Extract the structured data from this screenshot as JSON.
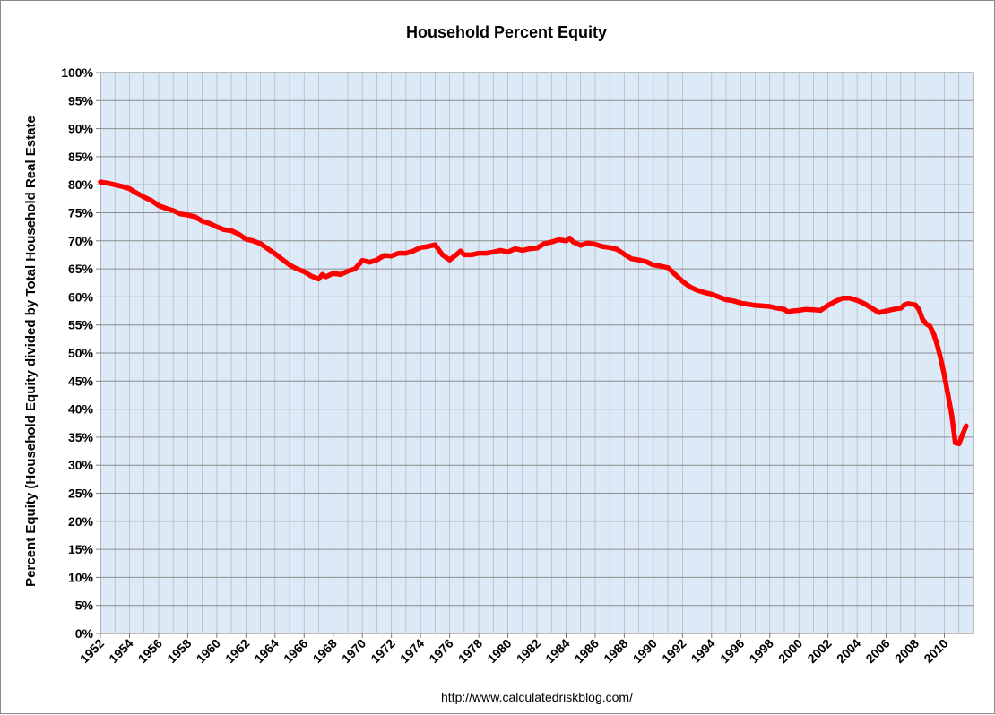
{
  "chart_data": {
    "type": "line",
    "title": "Household Percent Equity",
    "xlabel": "",
    "ylabel": "Percent Equity (Household Equity divided by Total Household Real Estate",
    "source": "http://www.calculatedriskblog.com/",
    "xlim": [
      1952,
      2010
    ],
    "ylim": [
      0,
      100
    ],
    "x_ticks": [
      "1952",
      "1954",
      "1956",
      "1958",
      "1960",
      "1962",
      "1964",
      "1966",
      "1968",
      "1970",
      "1972",
      "1974",
      "1976",
      "1978",
      "1980",
      "1982",
      "1984",
      "1986",
      "1988",
      "1990",
      "1992",
      "1994",
      "1996",
      "1998",
      "2000",
      "2002",
      "2004",
      "2006",
      "2008",
      "2010"
    ],
    "y_ticks": [
      "0%",
      "5%",
      "10%",
      "15%",
      "20%",
      "25%",
      "30%",
      "35%",
      "40%",
      "45%",
      "50%",
      "55%",
      "60%",
      "65%",
      "70%",
      "75%",
      "80%",
      "85%",
      "90%",
      "95%",
      "100%"
    ],
    "grid": true,
    "legend": "none",
    "line_color": "#ff0000",
    "plot_background": "#dce9f7",
    "series": [
      {
        "values": [
          [
            1952.0,
            80.5
          ],
          [
            1952.5,
            80.3
          ],
          [
            1953.0,
            80.0
          ],
          [
            1953.5,
            79.7
          ],
          [
            1954.0,
            79.3
          ],
          [
            1954.5,
            78.5
          ],
          [
            1955.0,
            77.8
          ],
          [
            1955.5,
            77.2
          ],
          [
            1956.0,
            76.3
          ],
          [
            1956.5,
            75.8
          ],
          [
            1957.0,
            75.4
          ],
          [
            1957.5,
            74.8
          ],
          [
            1958.0,
            74.6
          ],
          [
            1958.5,
            74.3
          ],
          [
            1959.0,
            73.5
          ],
          [
            1959.5,
            73.1
          ],
          [
            1960.0,
            72.5
          ],
          [
            1960.5,
            72.0
          ],
          [
            1961.0,
            71.8
          ],
          [
            1961.5,
            71.2
          ],
          [
            1962.0,
            70.3
          ],
          [
            1962.5,
            70.0
          ],
          [
            1963.0,
            69.5
          ],
          [
            1963.5,
            68.6
          ],
          [
            1964.0,
            67.7
          ],
          [
            1964.5,
            66.7
          ],
          [
            1965.0,
            65.7
          ],
          [
            1965.5,
            65.0
          ],
          [
            1966.0,
            64.5
          ],
          [
            1966.5,
            63.7
          ],
          [
            1967.0,
            63.2
          ],
          [
            1967.25,
            64.0
          ],
          [
            1967.5,
            63.6
          ],
          [
            1968.0,
            64.2
          ],
          [
            1968.5,
            64.0
          ],
          [
            1969.0,
            64.6
          ],
          [
            1969.5,
            65.0
          ],
          [
            1970.0,
            66.5
          ],
          [
            1970.5,
            66.2
          ],
          [
            1971.0,
            66.6
          ],
          [
            1971.5,
            67.4
          ],
          [
            1972.0,
            67.3
          ],
          [
            1972.5,
            67.8
          ],
          [
            1973.0,
            67.8
          ],
          [
            1973.5,
            68.2
          ],
          [
            1974.0,
            68.8
          ],
          [
            1974.5,
            69.0
          ],
          [
            1975.0,
            69.3
          ],
          [
            1975.5,
            67.5
          ],
          [
            1976.0,
            66.6
          ],
          [
            1976.5,
            67.6
          ],
          [
            1976.75,
            68.2
          ],
          [
            1977.0,
            67.5
          ],
          [
            1977.5,
            67.5
          ],
          [
            1978.0,
            67.8
          ],
          [
            1978.5,
            67.8
          ],
          [
            1979.0,
            68.0
          ],
          [
            1979.5,
            68.3
          ],
          [
            1980.0,
            68.0
          ],
          [
            1980.5,
            68.6
          ],
          [
            1981.0,
            68.3
          ],
          [
            1981.5,
            68.6
          ],
          [
            1982.0,
            68.7
          ],
          [
            1982.5,
            69.5
          ],
          [
            1983.0,
            69.8
          ],
          [
            1983.5,
            70.2
          ],
          [
            1984.0,
            70.0
          ],
          [
            1984.25,
            70.5
          ],
          [
            1984.5,
            69.8
          ],
          [
            1985.0,
            69.2
          ],
          [
            1985.5,
            69.6
          ],
          [
            1986.0,
            69.4
          ],
          [
            1986.5,
            69.0
          ],
          [
            1987.0,
            68.8
          ],
          [
            1987.5,
            68.5
          ],
          [
            1988.0,
            67.6
          ],
          [
            1988.5,
            66.8
          ],
          [
            1989.0,
            66.6
          ],
          [
            1989.5,
            66.3
          ],
          [
            1990.0,
            65.7
          ],
          [
            1990.5,
            65.5
          ],
          [
            1991.0,
            65.2
          ],
          [
            1991.5,
            64.0
          ],
          [
            1992.0,
            62.8
          ],
          [
            1992.5,
            61.8
          ],
          [
            1993.0,
            61.2
          ],
          [
            1993.5,
            60.8
          ],
          [
            1994.0,
            60.5
          ],
          [
            1994.5,
            60.0
          ],
          [
            1995.0,
            59.5
          ],
          [
            1995.5,
            59.3
          ],
          [
            1996.0,
            58.9
          ],
          [
            1996.5,
            58.7
          ],
          [
            1997.0,
            58.5
          ],
          [
            1997.5,
            58.4
          ],
          [
            1998.0,
            58.3
          ],
          [
            1998.5,
            58.0
          ],
          [
            1999.0,
            57.8
          ],
          [
            1999.25,
            57.3
          ],
          [
            1999.5,
            57.5
          ],
          [
            2000.0,
            57.6
          ],
          [
            2000.5,
            57.8
          ],
          [
            2001.0,
            57.7
          ],
          [
            2001.5,
            57.6
          ],
          [
            2002.0,
            58.5
          ],
          [
            2002.5,
            59.2
          ],
          [
            2003.0,
            59.8
          ],
          [
            2003.5,
            59.8
          ],
          [
            2004.0,
            59.4
          ],
          [
            2004.5,
            58.8
          ],
          [
            2005.0,
            58.0
          ],
          [
            2005.5,
            57.2
          ],
          [
            2006.0,
            57.5
          ],
          [
            2006.5,
            57.8
          ],
          [
            2007.0,
            58.0
          ],
          [
            2007.25,
            58.6
          ],
          [
            2007.5,
            58.8
          ],
          [
            2008.0,
            58.6
          ],
          [
            2008.25,
            57.8
          ],
          [
            2008.5,
            56.0
          ],
          [
            2008.75,
            55.2
          ],
          [
            2009.0,
            54.8
          ],
          [
            2009.25,
            53.5
          ],
          [
            2009.5,
            51.5
          ],
          [
            2009.75,
            49.0
          ],
          [
            2010.0,
            46.0
          ],
          [
            2010.25,
            42.5
          ],
          [
            2010.5,
            39.0
          ],
          [
            2010.75,
            34.0
          ],
          [
            2011.0,
            33.8
          ],
          [
            2011.25,
            35.5
          ],
          [
            2011.5,
            37.0
          ]
        ]
      }
    ]
  }
}
